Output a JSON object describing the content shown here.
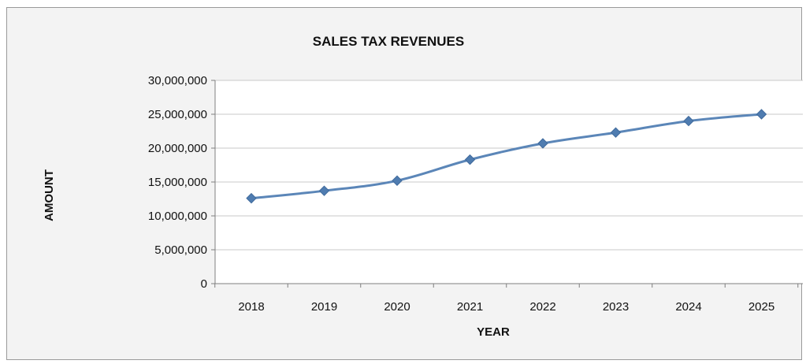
{
  "chart_data": {
    "type": "line",
    "title": "SALES TAX REVENUES",
    "xlabel": "YEAR",
    "ylabel": "AMOUNT",
    "categories": [
      "2018",
      "2019",
      "2020",
      "2021",
      "2022",
      "2023",
      "2024",
      "2025"
    ],
    "series": [
      {
        "values": [
          12600000,
          13700000,
          15200000,
          18300000,
          20700000,
          22300000,
          24000000,
          25000000
        ]
      }
    ],
    "yticks": [
      "0",
      "5,000,000",
      "10,000,000",
      "15,000,000",
      "20,000,000",
      "25,000,000",
      "30,000,000"
    ],
    "ylim": [
      0,
      30000000
    ],
    "grid": true,
    "legend": "none",
    "colors": {
      "line": "#5b86b8",
      "marker": "#4f7cb0",
      "grid": "#c8c8c8",
      "axis": "#7f7f7f",
      "plot_bg": "#ffffff",
      "chart_bg": "#f3f3f3"
    }
  }
}
